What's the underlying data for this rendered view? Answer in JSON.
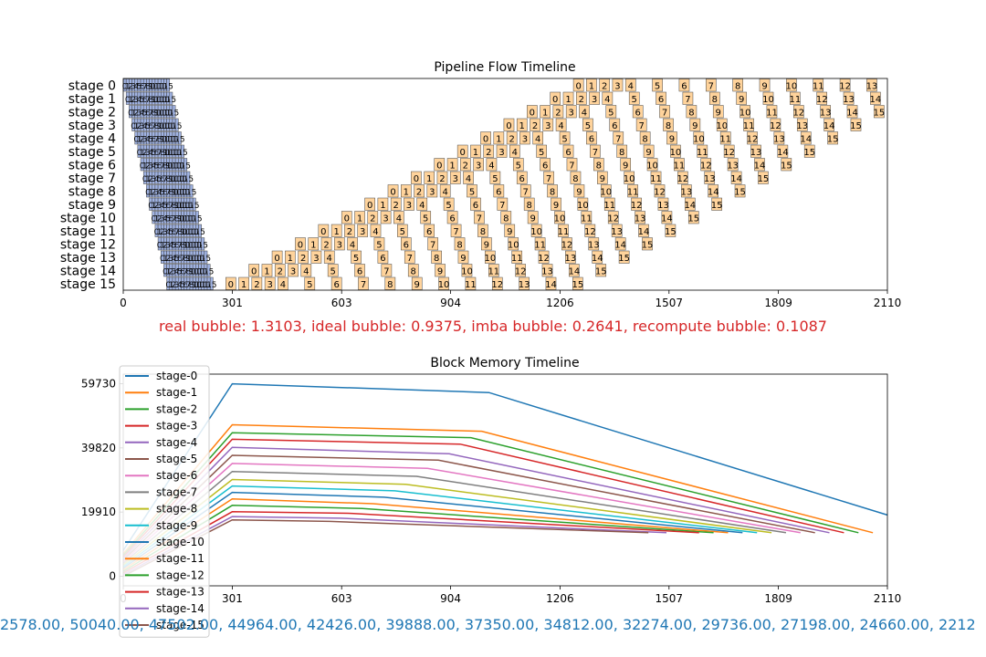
{
  "chart_data": [
    {
      "type": "gantt",
      "title": "Pipeline Flow Timeline",
      "x_ticks": [
        "0",
        "301",
        "603",
        "904",
        "1206",
        "1507",
        "1809",
        "2110"
      ],
      "xlim": [
        0,
        2110
      ],
      "stage_labels": [
        "stage 0",
        "stage 1",
        "stage 2",
        "stage 3",
        "stage 4",
        "stage 5",
        "stage 6",
        "stage 7",
        "stage 8",
        "stage 9",
        "stage 10",
        "stage 11",
        "stage 12",
        "stage 13",
        "stage 14",
        "stage 15"
      ],
      "num_microbatches": 16,
      "forward_duration": 8,
      "backward_duration": 28,
      "forward_color": "#9fb2e2",
      "backward_color": "#ffd39b",
      "forward_start_stage0": 0,
      "forward_stage_offset": 8,
      "backward_start_stage15": 283,
      "backward_stage_offset": 64,
      "backward_step_early": 36,
      "backward_step_late": 74,
      "summary": "real bubble: 1.3103, ideal bubble: 0.9375, imba bubble: 0.2641, recompute bubble: 0.1087",
      "summary_color": "#d62728"
    },
    {
      "type": "line",
      "title": "Block Memory Timeline",
      "x_ticks": [
        "0",
        "301",
        "603",
        "904",
        "1206",
        "1507",
        "1809",
        "2110"
      ],
      "xlim": [
        0,
        2110
      ],
      "y_ticks": [
        "0",
        "19910",
        "39820",
        "59730"
      ],
      "ylim": [
        -2990,
        62720
      ],
      "legend_position": "top-left",
      "series": [
        {
          "name": "stage-0",
          "color": "#1f77b4",
          "points": [
            [
              0,
              8000
            ],
            [
              301,
              59730
            ],
            [
              1010,
              57000
            ],
            [
              2110,
              19000
            ]
          ]
        },
        {
          "name": "stage-1",
          "color": "#ff7f0e",
          "points": [
            [
              0,
              7000
            ],
            [
              301,
              47000
            ],
            [
              990,
              45000
            ],
            [
              2070,
              13500
            ]
          ]
        },
        {
          "name": "stage-2",
          "color": "#2ca02c",
          "points": [
            [
              0,
              6500
            ],
            [
              301,
              44500
            ],
            [
              960,
              43000
            ],
            [
              2030,
              13500
            ]
          ]
        },
        {
          "name": "stage-3",
          "color": "#d62728",
          "points": [
            [
              0,
              6000
            ],
            [
              301,
              42500
            ],
            [
              930,
              41000
            ],
            [
              1990,
              13500
            ]
          ]
        },
        {
          "name": "stage-4",
          "color": "#9467bd",
          "points": [
            [
              0,
              5500
            ],
            [
              301,
              40000
            ],
            [
              900,
              38000
            ],
            [
              1950,
              13500
            ]
          ]
        },
        {
          "name": "stage-5",
          "color": "#8c564b",
          "points": [
            [
              0,
              5000
            ],
            [
              301,
              37500
            ],
            [
              870,
              36000
            ],
            [
              1910,
              13500
            ]
          ]
        },
        {
          "name": "stage-6",
          "color": "#e377c2",
          "points": [
            [
              0,
              4500
            ],
            [
              301,
              35000
            ],
            [
              840,
              33500
            ],
            [
              1870,
              13500
            ]
          ]
        },
        {
          "name": "stage-7",
          "color": "#7f7f7f",
          "points": [
            [
              0,
              4000
            ],
            [
              301,
              32500
            ],
            [
              810,
              31000
            ],
            [
              1830,
              13500
            ]
          ]
        },
        {
          "name": "stage-8",
          "color": "#bcbd22",
          "points": [
            [
              0,
              3500
            ],
            [
              301,
              30000
            ],
            [
              780,
              28500
            ],
            [
              1790,
              13500
            ]
          ]
        },
        {
          "name": "stage-9",
          "color": "#17becf",
          "points": [
            [
              0,
              3000
            ],
            [
              301,
              28000
            ],
            [
              750,
              26500
            ],
            [
              1750,
              13500
            ]
          ]
        },
        {
          "name": "stage-10",
          "color": "#1f77b4",
          "points": [
            [
              0,
              2500
            ],
            [
              301,
              26000
            ],
            [
              720,
              24500
            ],
            [
              1710,
              13500
            ]
          ]
        },
        {
          "name": "stage-11",
          "color": "#ff7f0e",
          "points": [
            [
              0,
              2000
            ],
            [
              301,
              24000
            ],
            [
              690,
              22500
            ],
            [
              1670,
              13500
            ]
          ]
        },
        {
          "name": "stage-12",
          "color": "#2ca02c",
          "points": [
            [
              0,
              1500
            ],
            [
              301,
              22000
            ],
            [
              660,
              21000
            ],
            [
              1630,
              13500
            ]
          ]
        },
        {
          "name": "stage-13",
          "color": "#d62728",
          "points": [
            [
              0,
              1000
            ],
            [
              301,
              20000
            ],
            [
              630,
              19500
            ],
            [
              1590,
              13500
            ]
          ]
        },
        {
          "name": "stage-14",
          "color": "#9467bd",
          "points": [
            [
              0,
              500
            ],
            [
              301,
              18500
            ],
            [
              600,
              18000
            ],
            [
              1500,
              13500
            ]
          ]
        },
        {
          "name": "stage-15",
          "color": "#8c564b",
          "points": [
            [
              0,
              0
            ],
            [
              301,
              17500
            ],
            [
              570,
              17000
            ],
            [
              1450,
              13500
            ]
          ]
        }
      ],
      "bottom_text": "2578.00, 50040.00, 47502.00, 44964.00, 42426.00, 39888.00, 37350.00, 34812.00, 32274.00, 29736.00, 27198.00, 24660.00, 2212",
      "bottom_text_color": "#1f77b4"
    }
  ]
}
